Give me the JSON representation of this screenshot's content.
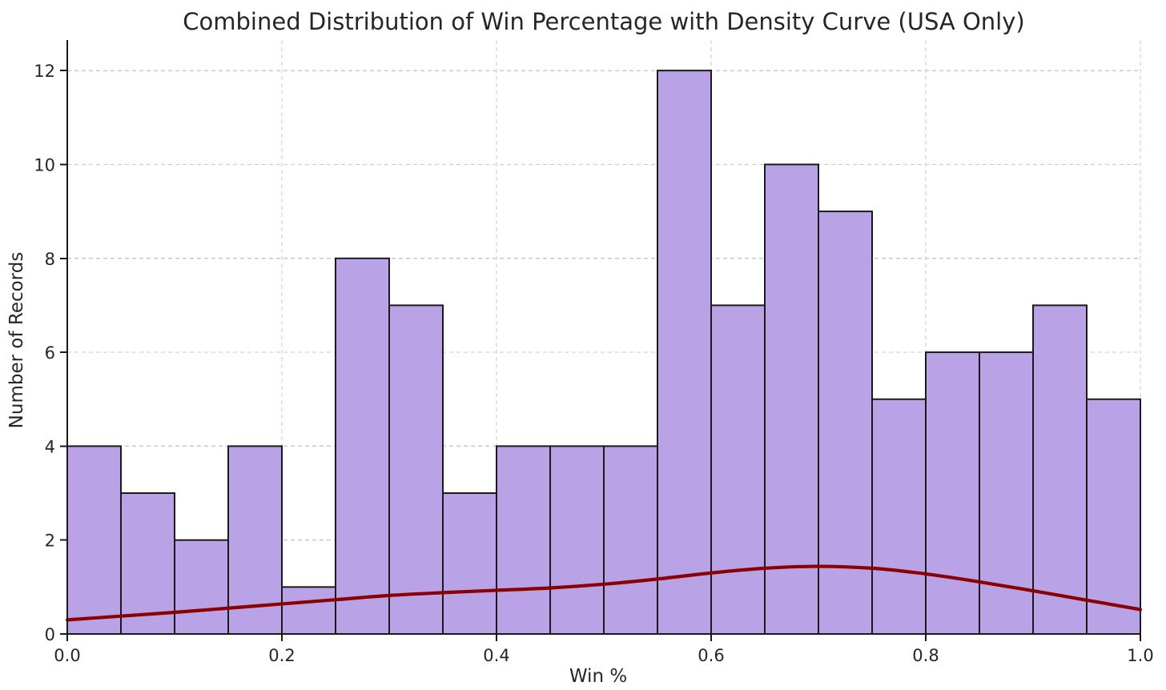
{
  "chart_data": {
    "type": "bar",
    "subtype": "histogram_with_density_curve",
    "title": "Combined Distribution of Win Percentage with Density Curve (USA Only)",
    "xlabel": "Win %",
    "ylabel": "Number of Records",
    "xlim": [
      0.0,
      1.0
    ],
    "ylim": [
      0.0,
      12.65
    ],
    "grid": true,
    "legend": false,
    "bin_width": 0.05,
    "bin_edges": [
      0.0,
      0.05,
      0.1,
      0.15,
      0.2,
      0.25,
      0.3,
      0.35,
      0.4,
      0.45,
      0.5,
      0.55,
      0.6,
      0.65,
      0.7,
      0.75,
      0.8,
      0.85,
      0.9,
      0.95,
      1.0
    ],
    "counts": [
      4,
      3,
      2,
      4,
      1,
      8,
      7,
      3,
      4,
      4,
      4,
      12,
      7,
      10,
      9,
      5,
      6,
      6,
      7,
      5
    ],
    "xticks": [
      {
        "value": 0.0,
        "label": "0.0"
      },
      {
        "value": 0.2,
        "label": "0.2"
      },
      {
        "value": 0.4,
        "label": "0.4"
      },
      {
        "value": 0.6,
        "label": "0.6"
      },
      {
        "value": 0.8,
        "label": "0.8"
      },
      {
        "value": 1.0,
        "label": "1.0"
      }
    ],
    "yticks": [
      {
        "value": 0,
        "label": "0"
      },
      {
        "value": 2,
        "label": "2"
      },
      {
        "value": 4,
        "label": "4"
      },
      {
        "value": 6,
        "label": "6"
      },
      {
        "value": 8,
        "label": "8"
      },
      {
        "value": 10,
        "label": "10"
      },
      {
        "value": 12,
        "label": "12"
      }
    ],
    "density_curve": {
      "x": [
        0.0,
        0.05,
        0.1,
        0.15,
        0.2,
        0.25,
        0.3,
        0.35,
        0.4,
        0.45,
        0.5,
        0.55,
        0.6,
        0.65,
        0.7,
        0.75,
        0.8,
        0.85,
        0.9,
        0.95,
        1.0
      ],
      "y": [
        0.3,
        0.38,
        0.46,
        0.55,
        0.64,
        0.73,
        0.82,
        0.88,
        0.93,
        0.98,
        1.06,
        1.17,
        1.3,
        1.4,
        1.44,
        1.4,
        1.28,
        1.11,
        0.92,
        0.72,
        0.52
      ]
    },
    "colors": {
      "bar_fill": "#b9a3e6",
      "bar_edge": "#1a1a1a",
      "density_curve": "#8b0000",
      "grid": "#c9c9c9",
      "axis": "#1a1a1a",
      "text": "#262626"
    }
  }
}
